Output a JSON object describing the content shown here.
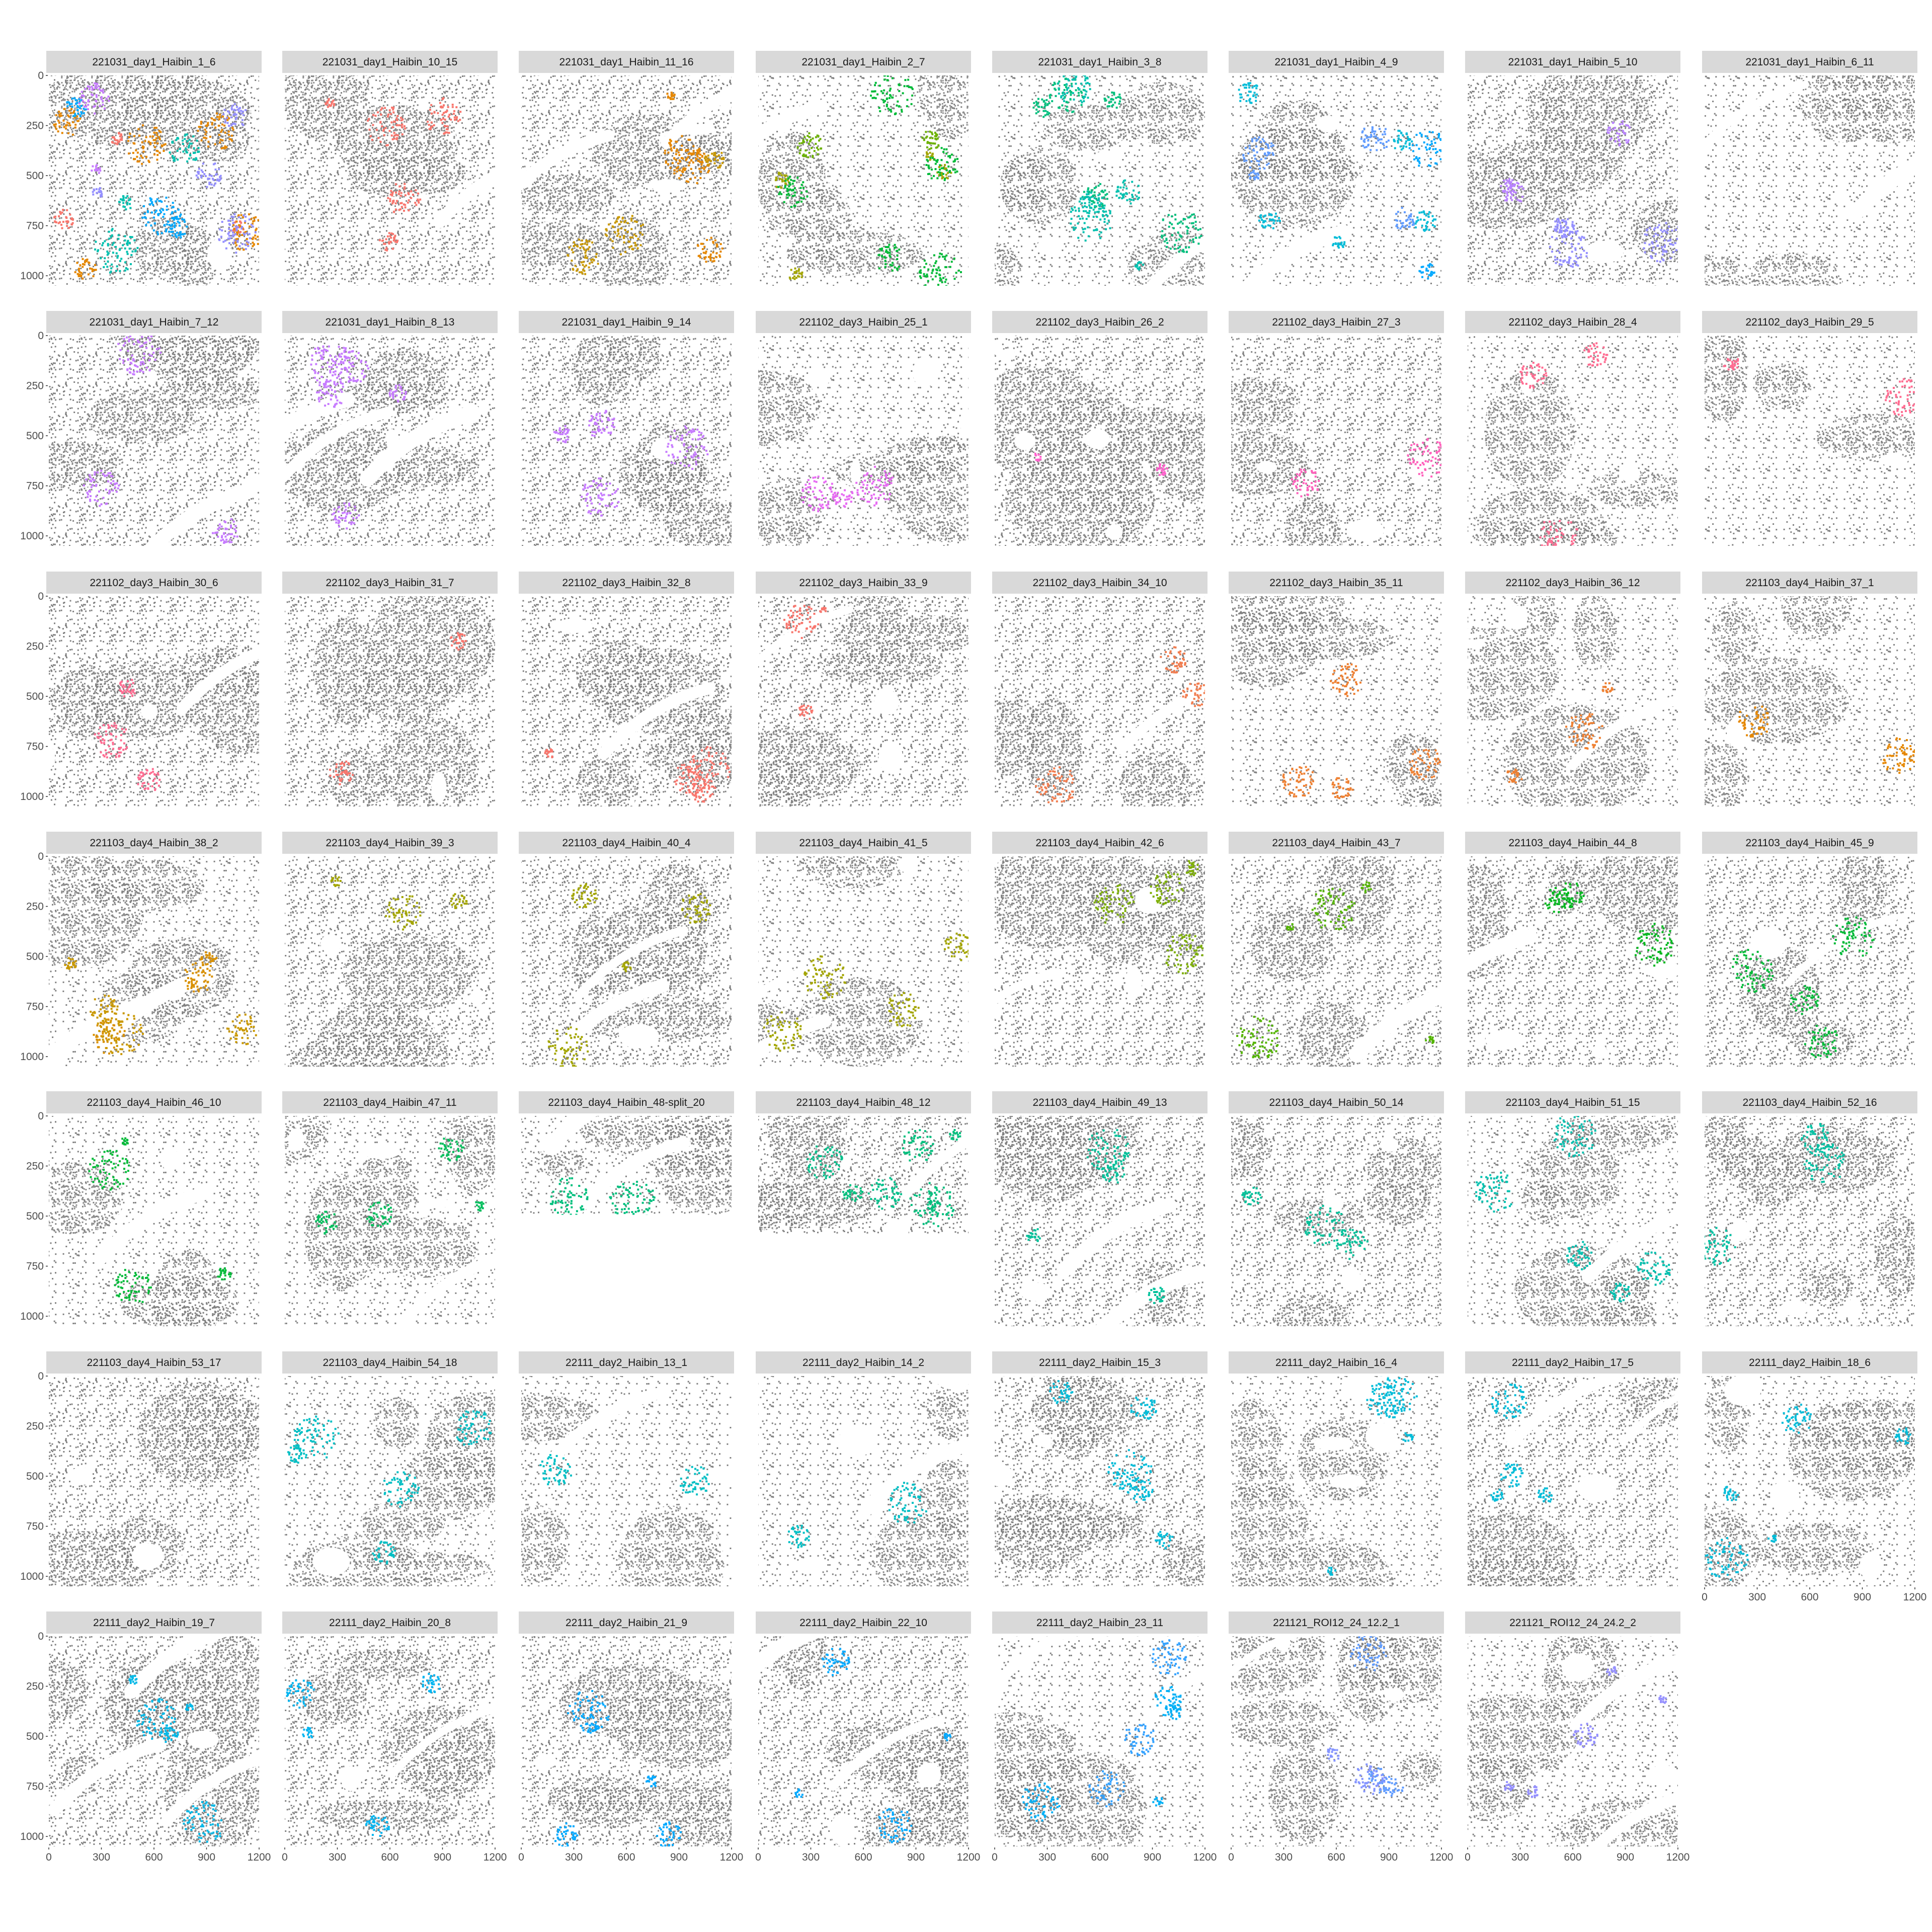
{
  "chart_data": {
    "type": "scatter",
    "layout": "facet_wrap",
    "ncol": 8,
    "x_axis": {
      "ticks": [
        "0",
        "300",
        "600",
        "900",
        "1200"
      ],
      "tick_values": [
        0,
        300,
        600,
        900,
        1200
      ],
      "range": [
        0,
        1200
      ]
    },
    "y_axis": {
      "ticks": [
        "0",
        "250",
        "500",
        "750",
        "1000"
      ],
      "tick_values": [
        0,
        250,
        500,
        750,
        1000
      ],
      "range": [
        0,
        1050
      ],
      "reversed": true
    },
    "background_color": "#808080",
    "panels": [
      {
        "title": "221031_day1_Haibin_1_6",
        "extent": 1,
        "colors": [
          "#F8766D",
          "#00A9FF",
          "#E58700",
          "#00C0AF",
          "#C77CFF",
          "#9590FF"
        ]
      },
      {
        "title": "221031_day1_Haibin_10_15",
        "extent": 1,
        "colors": [
          "#F8766D"
        ]
      },
      {
        "title": "221031_day1_Haibin_11_16",
        "extent": 1,
        "colors": [
          "#E58700",
          "#C99800"
        ]
      },
      {
        "title": "221031_day1_Haibin_2_7",
        "extent": 1,
        "colors": [
          "#A3A500",
          "#6BB100",
          "#00BA38"
        ]
      },
      {
        "title": "221031_day1_Haibin_3_8",
        "extent": 1,
        "colors": [
          "#00BF7D",
          "#00C0AF"
        ]
      },
      {
        "title": "221031_day1_Haibin_4_9",
        "extent": 1,
        "colors": [
          "#00A9FF",
          "#00BCD8",
          "#619CFF"
        ]
      },
      {
        "title": "221031_day1_Haibin_5_10",
        "extent": 1,
        "colors": [
          "#B983FF",
          "#9590FF"
        ]
      },
      {
        "title": "221031_day1_Haibin_6_11",
        "extent": 1,
        "colors": []
      },
      {
        "title": "221031_day1_Haibin_7_12",
        "extent": 1,
        "colors": [
          "#C77CFF"
        ]
      },
      {
        "title": "221031_day1_Haibin_8_13",
        "extent": 1,
        "colors": [
          "#C77CFF"
        ]
      },
      {
        "title": "221031_day1_Haibin_9_14",
        "extent": 1,
        "colors": [
          "#C77CFF"
        ]
      },
      {
        "title": "221102_day3_Haibin_25_1",
        "extent": 1,
        "colors": [
          "#E76BF3"
        ]
      },
      {
        "title": "221102_day3_Haibin_26_2",
        "extent": 1,
        "colors": [
          "#FF61CC"
        ]
      },
      {
        "title": "221102_day3_Haibin_27_3",
        "extent": 1,
        "colors": [
          "#FF62BC"
        ]
      },
      {
        "title": "221102_day3_Haibin_28_4",
        "extent": 1,
        "colors": [
          "#FF6C91"
        ]
      },
      {
        "title": "221102_day3_Haibin_29_5",
        "extent": 1,
        "colors": [
          "#FF6C91"
        ]
      },
      {
        "title": "221102_day3_Haibin_30_6",
        "extent": 1,
        "colors": [
          "#FF6C91"
        ]
      },
      {
        "title": "221102_day3_Haibin_31_7",
        "extent": 1,
        "colors": [
          "#F8766D"
        ]
      },
      {
        "title": "221102_day3_Haibin_32_8",
        "extent": 1,
        "colors": [
          "#F8766D"
        ]
      },
      {
        "title": "221102_day3_Haibin_33_9",
        "extent": 1,
        "colors": [
          "#F8766D"
        ]
      },
      {
        "title": "221102_day3_Haibin_34_10",
        "extent": 1,
        "colors": [
          "#F17D50"
        ]
      },
      {
        "title": "221102_day3_Haibin_35_11",
        "extent": 1,
        "colors": [
          "#EE8032"
        ]
      },
      {
        "title": "221102_day3_Haibin_36_12",
        "extent": 1,
        "colors": [
          "#EE8032"
        ]
      },
      {
        "title": "221103_day4_Haibin_37_1",
        "extent": 1,
        "colors": [
          "#E58700"
        ]
      },
      {
        "title": "221103_day4_Haibin_38_2",
        "extent": 1,
        "colors": [
          "#D89000",
          "#C99800"
        ]
      },
      {
        "title": "221103_day4_Haibin_39_3",
        "extent": 1,
        "colors": [
          "#A3A500"
        ]
      },
      {
        "title": "221103_day4_Haibin_40_4",
        "extent": 1,
        "colors": [
          "#A3A500"
        ]
      },
      {
        "title": "221103_day4_Haibin_41_5",
        "extent": 1,
        "colors": [
          "#A3A500"
        ]
      },
      {
        "title": "221103_day4_Haibin_42_6",
        "extent": 1,
        "colors": [
          "#7CAE00"
        ]
      },
      {
        "title": "221103_day4_Haibin_43_7",
        "extent": 1,
        "colors": [
          "#53B400"
        ]
      },
      {
        "title": "221103_day4_Haibin_44_8",
        "extent": 1,
        "colors": [
          "#00B81F"
        ]
      },
      {
        "title": "221103_day4_Haibin_45_9",
        "extent": 1,
        "colors": [
          "#00BA38"
        ]
      },
      {
        "title": "221103_day4_Haibin_46_10",
        "extent": 1,
        "colors": [
          "#00BA38"
        ]
      },
      {
        "title": "221103_day4_Haibin_47_11",
        "extent": 1,
        "colors": [
          "#00BD5C"
        ]
      },
      {
        "title": "221103_day4_Haibin_48-split_20",
        "extent": 0.47,
        "colors": [
          "#00BF7D"
        ]
      },
      {
        "title": "221103_day4_Haibin_48_12",
        "extent": 0.56,
        "colors": [
          "#00BF7D",
          "#00C08B"
        ]
      },
      {
        "title": "221103_day4_Haibin_49_13",
        "extent": 1,
        "colors": [
          "#00C19A"
        ]
      },
      {
        "title": "221103_day4_Haibin_50_14",
        "extent": 1,
        "colors": [
          "#00C19A"
        ]
      },
      {
        "title": "221103_day4_Haibin_51_15",
        "extent": 1,
        "colors": [
          "#00C0AF"
        ]
      },
      {
        "title": "221103_day4_Haibin_52_16",
        "extent": 1,
        "colors": [
          "#00C1A3"
        ]
      },
      {
        "title": "221103_day4_Haibin_53_17",
        "extent": 1,
        "colors": []
      },
      {
        "title": "221103_day4_Haibin_54_18",
        "extent": 1,
        "colors": [
          "#00BFC4"
        ]
      },
      {
        "title": "22111_day2_Haibin_13_1",
        "extent": 1,
        "colors": [
          "#00BFC4"
        ]
      },
      {
        "title": "22111_day2_Haibin_14_2",
        "extent": 1,
        "colors": [
          "#00BFC4"
        ]
      },
      {
        "title": "22111_day2_Haibin_15_3",
        "extent": 1,
        "colors": [
          "#00BCD8"
        ]
      },
      {
        "title": "22111_day2_Haibin_16_4",
        "extent": 1,
        "colors": [
          "#00BCD8"
        ]
      },
      {
        "title": "22111_day2_Haibin_17_5",
        "extent": 1,
        "colors": [
          "#00BCD8"
        ]
      },
      {
        "title": "22111_day2_Haibin_18_6",
        "extent": 1,
        "colors": [
          "#00BCD8"
        ]
      },
      {
        "title": "22111_day2_Haibin_19_7",
        "extent": 1,
        "colors": [
          "#00B8E7"
        ]
      },
      {
        "title": "22111_day2_Haibin_20_8",
        "extent": 1,
        "colors": [
          "#00B4F0"
        ]
      },
      {
        "title": "22111_day2_Haibin_21_9",
        "extent": 1,
        "colors": [
          "#00A9FF"
        ]
      },
      {
        "title": "22111_day2_Haibin_22_10",
        "extent": 1,
        "colors": [
          "#00A9FF"
        ]
      },
      {
        "title": "22111_day2_Haibin_23_11",
        "extent": 1,
        "colors": [
          "#00B0F6",
          "#35A2FF"
        ]
      },
      {
        "title": "221121_ROI12_24_12.2_1",
        "extent": 1,
        "colors": [
          "#619CFF",
          "#8494FF"
        ]
      },
      {
        "title": "221121_ROI12_24_24.2_2",
        "extent": 1,
        "colors": [
          "#9590FF"
        ]
      }
    ]
  }
}
